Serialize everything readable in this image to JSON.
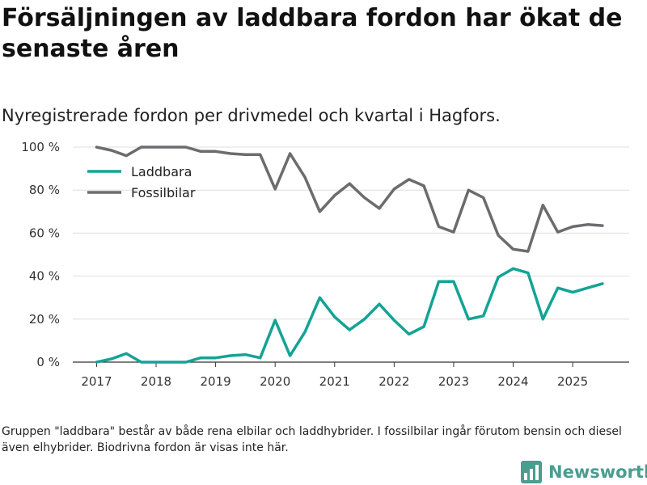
{
  "header": {
    "title": "Försäljningen av laddbara fordon har ökat de senaste åren",
    "subtitle": "Nyregistrerade fordon per drivmedel och kvartal i Hagfors."
  },
  "footer": {
    "note": "Gruppen \"laddbara\" består av både rena elbilar och laddhybrider. I fossilbilar ingår förutom bensin och diesel även elhybrider. Biodrivna fordon är visas inte här.",
    "brand": "Newsworthy"
  },
  "colors": {
    "laddbara": "#14a395",
    "fossil": "#6b6b70",
    "grid": "#dedede",
    "brand": "#4a9d8f"
  },
  "chart_data": {
    "type": "line",
    "title": "Försäljningen av laddbara fordon har ökat de senaste åren",
    "subtitle": "Nyregistrerade fordon per drivmedel och kvartal i Hagfors.",
    "xlabel": "",
    "ylabel": "",
    "ylim": [
      0,
      100
    ],
    "xlim": [
      2016.6,
      2025.95
    ],
    "yticks": [
      0,
      20,
      40,
      60,
      80,
      100
    ],
    "ytick_labels": [
      "0 %",
      "20 %",
      "40 %",
      "60 %",
      "80 %",
      "100 %"
    ],
    "xticks": [
      2017,
      2018,
      2019,
      2020,
      2021,
      2022,
      2023,
      2024,
      2025
    ],
    "xtick_labels": [
      "2017",
      "2018",
      "2019",
      "2020",
      "2021",
      "2022",
      "2023",
      "2024",
      "2025"
    ],
    "grid": true,
    "legend_position": "top-left",
    "x": [
      2017.0,
      2017.25,
      2017.5,
      2017.75,
      2018.0,
      2018.25,
      2018.5,
      2018.75,
      2019.0,
      2019.25,
      2019.5,
      2019.75,
      2020.0,
      2020.25,
      2020.5,
      2020.75,
      2021.0,
      2021.25,
      2021.5,
      2021.75,
      2022.0,
      2022.25,
      2022.5,
      2022.75,
      2023.0,
      2023.25,
      2023.5,
      2023.75,
      2024.0,
      2024.25,
      2024.5,
      2024.75,
      2025.0,
      2025.25,
      2025.5
    ],
    "series": [
      {
        "name": "Laddbara",
        "color": "#14a395",
        "values": [
          0,
          1.5,
          4,
          0,
          0,
          0,
          0,
          2,
          2,
          3,
          3.5,
          2,
          19.5,
          3,
          14,
          30,
          21,
          15,
          20,
          27,
          19.5,
          13,
          16.5,
          37.5,
          37.5,
          20,
          21.5,
          39.5,
          43.5,
          41.5,
          20,
          34.5,
          32.5,
          34.5,
          36.5
        ]
      },
      {
        "name": "Fossilbilar",
        "color": "#6b6b70",
        "values": [
          100,
          98.5,
          96,
          100,
          100,
          100,
          100,
          98,
          98,
          97,
          96.5,
          96.5,
          80.5,
          97,
          86,
          70,
          77.5,
          83,
          76.5,
          71.5,
          80.5,
          85,
          82,
          63,
          60.5,
          80,
          76.5,
          59,
          52.5,
          51.5,
          73,
          60.5,
          63,
          64,
          63.5
        ]
      }
    ]
  }
}
